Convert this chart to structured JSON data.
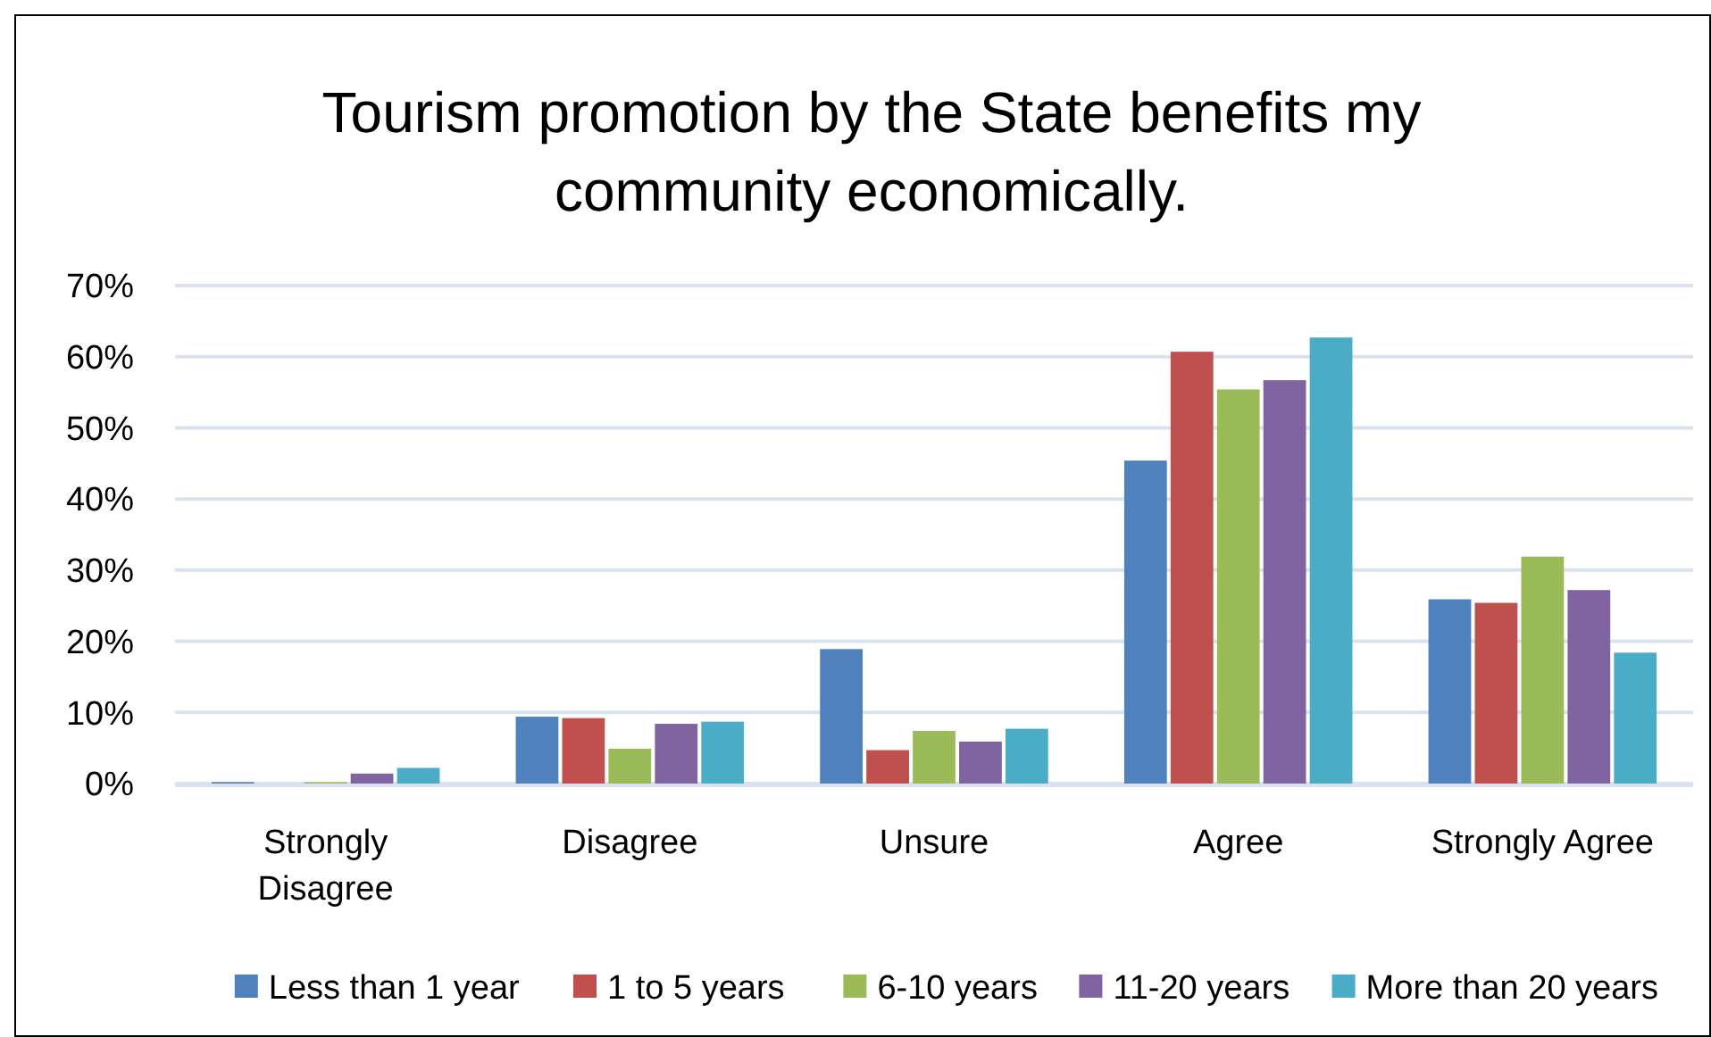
{
  "chart_data": {
    "type": "bar",
    "title": "Tourism promotion by the State benefits my community economically.",
    "categories": [
      "Strongly Disagree",
      "Disagree",
      "Unsure",
      "Agree",
      "Strongly Agree"
    ],
    "series": [
      {
        "name": "Less than 1 year",
        "color": "#4f81bd",
        "values": [
          0.2,
          9.4,
          18.9,
          45.4,
          25.9
        ]
      },
      {
        "name": "1 to 5 years",
        "color": "#c0504d",
        "values": [
          0,
          9.2,
          4.7,
          60.7,
          25.4
        ]
      },
      {
        "name": "6-10 years",
        "color": "#9bbb59",
        "values": [
          0.2,
          4.9,
          7.4,
          55.4,
          31.9
        ]
      },
      {
        "name": "11-20 years",
        "color": "#8064a2",
        "values": [
          1.4,
          8.4,
          5.9,
          56.7,
          27.2
        ]
      },
      {
        "name": "More than 20 years",
        "color": "#4bacc6",
        "values": [
          2.2,
          8.7,
          7.7,
          62.7,
          18.4
        ]
      }
    ],
    "ylim": [
      0,
      70
    ],
    "yticks": [
      {
        "value": 0,
        "label": "0%"
      },
      {
        "value": 10,
        "label": "10%"
      },
      {
        "value": 20,
        "label": "20%"
      },
      {
        "value": 30,
        "label": "30%"
      },
      {
        "value": 40,
        "label": "40%"
      },
      {
        "value": 50,
        "label": "50%"
      },
      {
        "value": 60,
        "label": "60%"
      },
      {
        "value": 70,
        "label": "70%"
      }
    ],
    "grid": "y",
    "legend": "bottom"
  }
}
